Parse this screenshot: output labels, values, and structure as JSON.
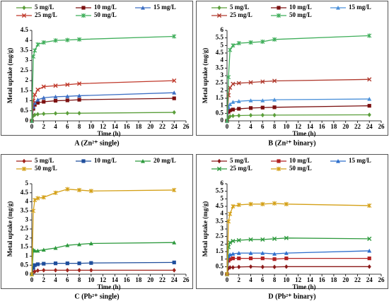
{
  "chart_data": [
    {
      "type": "line",
      "caption": "A (Zn²⁺ single)",
      "xlabel": "Time (h)",
      "ylabel": "Metal uptake (mg/g)",
      "x": [
        0,
        0.25,
        0.5,
        1,
        2,
        4,
        6,
        8,
        24
      ],
      "xlim": [
        0,
        26
      ],
      "xticks": [
        0,
        2,
        4,
        6,
        8,
        10,
        12,
        14,
        16,
        18,
        20,
        22,
        24,
        26
      ],
      "ylim": [
        0,
        4.5
      ],
      "yticks": [
        0,
        0.5,
        1,
        1.5,
        2,
        2.5,
        3,
        3.5,
        4,
        4.5
      ],
      "series": [
        {
          "name": "5 mg/L",
          "color": "#5a9e3a",
          "marker": "diamond",
          "values": [
            0,
            0.25,
            0.3,
            0.33,
            0.35,
            0.37,
            0.38,
            0.38,
            0.42
          ]
        },
        {
          "name": "10 mg/L",
          "color": "#7b1010",
          "marker": "square",
          "values": [
            0,
            0.6,
            0.8,
            0.9,
            0.95,
            1.0,
            1.02,
            1.05,
            1.12
          ]
        },
        {
          "name": "15 mg/L",
          "color": "#3d6fc4",
          "marker": "triangle",
          "values": [
            0,
            0.7,
            0.9,
            1.05,
            1.15,
            1.2,
            1.22,
            1.25,
            1.4
          ]
        },
        {
          "name": "25 mg/L",
          "color": "#c0392b",
          "marker": "cross",
          "values": [
            0,
            1.0,
            1.3,
            1.55,
            1.7,
            1.75,
            1.8,
            1.85,
            2.0
          ]
        },
        {
          "name": "50 mg/L",
          "color": "#3fae5a",
          "marker": "star",
          "values": [
            0,
            3.2,
            3.5,
            3.8,
            3.9,
            4.0,
            4.02,
            4.05,
            4.2
          ]
        }
      ]
    },
    {
      "type": "line",
      "caption": "B (Zn²⁺ binary)",
      "xlabel": "Time (h)",
      "ylabel": "Metal uptake (mg/g)",
      "x": [
        0,
        0.25,
        0.5,
        1,
        2,
        4,
        6,
        8,
        24
      ],
      "xlim": [
        0,
        26
      ],
      "xticks": [
        0,
        2,
        4,
        6,
        8,
        10,
        12,
        14,
        16,
        18,
        20,
        22,
        24,
        26
      ],
      "ylim": [
        0,
        6
      ],
      "yticks": [
        0,
        0.5,
        1,
        1.5,
        2,
        2.5,
        3,
        3.5,
        4,
        4.5,
        5,
        5.5,
        6
      ],
      "series": [
        {
          "name": "5 mg/L",
          "color": "#5a9e3a",
          "marker": "diamond",
          "values": [
            0,
            0.2,
            0.3,
            0.33,
            0.35,
            0.37,
            0.38,
            0.38,
            0.4
          ]
        },
        {
          "name": "10 mg/L",
          "color": "#7b1010",
          "marker": "square",
          "values": [
            0,
            0.6,
            0.7,
            0.75,
            0.8,
            0.85,
            0.88,
            0.9,
            1.0
          ]
        },
        {
          "name": "15 mg/L",
          "color": "#4a90d9",
          "marker": "triangle",
          "values": [
            0,
            0.9,
            1.1,
            1.25,
            1.3,
            1.35,
            1.35,
            1.4,
            1.45
          ]
        },
        {
          "name": "25 mg/L",
          "color": "#b03a2e",
          "marker": "cross",
          "values": [
            0,
            1.7,
            2.2,
            2.45,
            2.5,
            2.55,
            2.6,
            2.65,
            2.75
          ]
        },
        {
          "name": "50 mg/L",
          "color": "#3fae5a",
          "marker": "star",
          "values": [
            0,
            2.9,
            4.7,
            5.0,
            5.15,
            5.2,
            5.25,
            5.4,
            5.65
          ]
        }
      ]
    },
    {
      "type": "line",
      "caption": "C (Pb²⁺ single)",
      "xlabel": "Time (h)",
      "ylabel": "Metal uptake (mg/g)",
      "x": [
        0,
        0.25,
        0.5,
        1,
        2,
        4,
        6,
        8,
        10,
        24
      ],
      "xlim": [
        0,
        26
      ],
      "xticks": [
        0,
        2,
        4,
        6,
        8,
        10,
        12,
        14,
        16,
        18,
        20,
        22,
        24,
        26
      ],
      "ylim": [
        0,
        5
      ],
      "yticks": [
        0,
        0.5,
        1,
        1.5,
        2,
        2.5,
        3,
        3.5,
        4,
        4.5,
        5
      ],
      "series": [
        {
          "name": "5 mg/L",
          "color": "#a0221a",
          "marker": "diamond",
          "values": [
            0,
            0.1,
            0.15,
            0.2,
            0.22,
            0.22,
            0.22,
            0.22,
            0.22,
            0.22
          ]
        },
        {
          "name": "10 mg/L",
          "color": "#1f4e9c",
          "marker": "square",
          "values": [
            0,
            0.35,
            0.5,
            0.55,
            0.58,
            0.6,
            0.6,
            0.6,
            0.62,
            0.65
          ]
        },
        {
          "name": "20 mg/L",
          "color": "#2e9a3e",
          "marker": "triangle",
          "values": [
            0,
            1.35,
            1.3,
            1.3,
            1.35,
            1.45,
            1.6,
            1.65,
            1.7,
            1.75
          ]
        },
        {
          "name": "50 mg/L",
          "color": "#d4a017",
          "marker": "star",
          "values": [
            0,
            3.5,
            4.1,
            4.2,
            4.25,
            4.5,
            4.7,
            4.65,
            4.6,
            4.65
          ]
        }
      ]
    },
    {
      "type": "line",
      "caption": "D (Pb²⁺ binary)",
      "xlabel": "Time (h)",
      "ylabel": "Metal uptake (mg/g)",
      "x": [
        0,
        0.25,
        0.5,
        1,
        2,
        4,
        6,
        8,
        10,
        24
      ],
      "xlim": [
        0,
        26
      ],
      "xticks": [
        0,
        2,
        4,
        6,
        8,
        10,
        12,
        14,
        16,
        18,
        20,
        22,
        24,
        26
      ],
      "ylim": [
        0,
        6
      ],
      "yticks": [
        0,
        0.5,
        1,
        1.5,
        2,
        2.5,
        3,
        3.5,
        4,
        4.5,
        5,
        5.5,
        6
      ],
      "series": [
        {
          "name": "5 mg/L",
          "color": "#8b1a1a",
          "marker": "diamond",
          "values": [
            0,
            0.4,
            0.45,
            0.45,
            0.48,
            0.5,
            0.48,
            0.48,
            0.5,
            0.5
          ]
        },
        {
          "name": "10 mg/L",
          "color": "#b22222",
          "marker": "square",
          "values": [
            0,
            0.9,
            1.0,
            1.05,
            1.05,
            1.05,
            1.05,
            1.0,
            1.05,
            1.05
          ]
        },
        {
          "name": "15 mg/L",
          "color": "#2f6fcc",
          "marker": "triangle",
          "values": [
            0,
            1.2,
            1.3,
            1.35,
            1.4,
            1.4,
            1.4,
            1.35,
            1.4,
            1.55
          ]
        },
        {
          "name": "25 mg/L",
          "color": "#2e9a3e",
          "marker": "cross",
          "values": [
            0,
            1.8,
            2.1,
            2.2,
            2.25,
            2.3,
            2.3,
            2.35,
            2.4,
            2.35
          ]
        },
        {
          "name": "50 mg/L",
          "color": "#d4a017",
          "marker": "star",
          "values": [
            0,
            3.5,
            4.0,
            4.5,
            4.6,
            4.65,
            4.65,
            4.7,
            4.65,
            4.55
          ]
        }
      ]
    }
  ]
}
